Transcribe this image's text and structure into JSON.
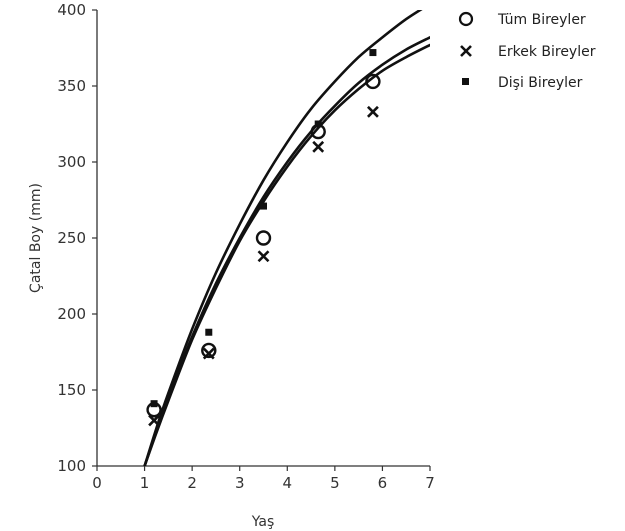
{
  "chart_data": {
    "type": "scatter",
    "xlabel": "Yaş",
    "ylabel": "Çatal Boy (mm)",
    "xlim": [
      0,
      7
    ],
    "ylim": [
      100,
      400
    ],
    "xticks": [
      "0",
      "1",
      "2",
      "3",
      "4",
      "5",
      "6",
      "7"
    ],
    "yticks": [
      "100",
      "150",
      "200",
      "250",
      "300",
      "350",
      "400"
    ],
    "grid": false,
    "legend_position": "top-right outside",
    "series": [
      {
        "name": "Tüm Bireyler",
        "marker": "open-circle",
        "color": "#111111",
        "points": [
          [
            1.2,
            137
          ],
          [
            2.35,
            176
          ],
          [
            3.5,
            250
          ],
          [
            4.65,
            320
          ],
          [
            5.8,
            353
          ]
        ],
        "curve": [
          [
            1.0,
            100
          ],
          [
            1.25,
            125
          ],
          [
            1.5,
            148
          ],
          [
            2.0,
            190
          ],
          [
            2.5,
            227
          ],
          [
            3.0,
            259
          ],
          [
            3.5,
            288
          ],
          [
            4.0,
            313
          ],
          [
            4.5,
            335
          ],
          [
            5.0,
            353
          ],
          [
            5.5,
            369
          ],
          [
            6.0,
            382
          ],
          [
            6.5,
            394
          ],
          [
            7.0,
            404
          ]
        ]
      },
      {
        "name": "Erkek Bireyler",
        "marker": "x",
        "color": "#111111",
        "points": [
          [
            1.2,
            130
          ],
          [
            2.35,
            174
          ],
          [
            3.5,
            238
          ],
          [
            4.65,
            310
          ],
          [
            5.8,
            333
          ]
        ],
        "curve": [
          [
            1.0,
            100
          ],
          [
            1.25,
            122
          ],
          [
            1.5,
            143
          ],
          [
            2.0,
            183
          ],
          [
            2.5,
            217
          ],
          [
            3.0,
            248
          ],
          [
            3.5,
            274
          ],
          [
            4.0,
            297
          ],
          [
            4.5,
            317
          ],
          [
            5.0,
            334
          ],
          [
            5.5,
            348
          ],
          [
            6.0,
            360
          ],
          [
            6.5,
            369
          ],
          [
            7.0,
            377
          ]
        ]
      },
      {
        "name": "Dişi Bireyler",
        "marker": "filled-square",
        "color": "#111111",
        "points": [
          [
            1.2,
            141
          ],
          [
            2.35,
            188
          ],
          [
            3.5,
            271
          ],
          [
            4.65,
            325
          ],
          [
            5.8,
            372
          ]
        ],
        "curve": [
          [
            1.0,
            100
          ],
          [
            1.25,
            123
          ],
          [
            1.5,
            145
          ],
          [
            2.0,
            185
          ],
          [
            2.5,
            220
          ],
          [
            3.0,
            250
          ],
          [
            3.5,
            277
          ],
          [
            4.0,
            300
          ],
          [
            4.5,
            320
          ],
          [
            5.0,
            337
          ],
          [
            5.5,
            352
          ],
          [
            6.0,
            364
          ],
          [
            6.5,
            374
          ],
          [
            7.0,
            382
          ]
        ]
      }
    ]
  }
}
